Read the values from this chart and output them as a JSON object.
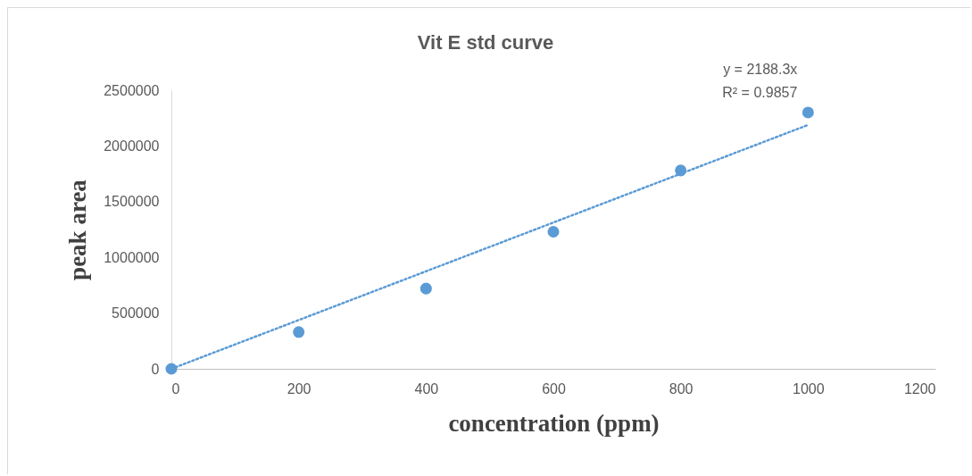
{
  "chart_data": {
    "type": "scatter",
    "title": "Vit E std curve",
    "xlabel": "concentration (ppm)",
    "ylabel": "peak area",
    "xlim": [
      0,
      1200
    ],
    "xticks": [
      0,
      200,
      400,
      600,
      800,
      1000,
      1200
    ],
    "ylim": [
      0,
      2500000
    ],
    "yticks": [
      0,
      500000,
      1000000,
      1500000,
      2000000,
      2500000
    ],
    "grid": false,
    "legend": false,
    "annotations": [
      "y = 2188.3x",
      "R² = 0.9857"
    ],
    "series": [
      {
        "marker": "circle",
        "color": "#5b9bd5",
        "x": [
          0,
          200,
          400,
          600,
          800,
          1000
        ],
        "values": [
          0,
          330000,
          720000,
          1230000,
          1780000,
          2300000
        ]
      },
      {
        "type": "line",
        "line_style": "dotted",
        "marker": "none",
        "color": "#5b9bd5",
        "x": [
          0,
          1000
        ],
        "values": [
          0,
          2188300
        ]
      }
    ]
  }
}
